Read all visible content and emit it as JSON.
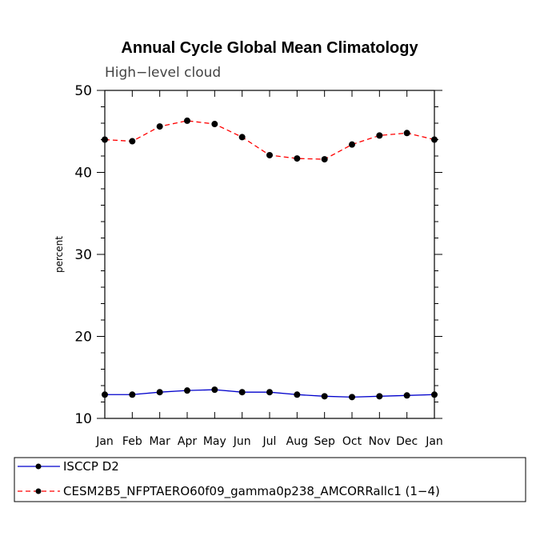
{
  "chart_data": {
    "type": "line",
    "title": "Annual Cycle Global Mean Climatology",
    "subtitle": "High−level cloud",
    "xlabel": "",
    "ylabel": "percent",
    "categories": [
      "Jan",
      "Feb",
      "Mar",
      "Apr",
      "May",
      "Jun",
      "Jul",
      "Aug",
      "Sep",
      "Oct",
      "Nov",
      "Dec",
      "Jan"
    ],
    "ylim": [
      10,
      50
    ],
    "yticks": [
      10,
      20,
      30,
      40,
      50
    ],
    "grid": false,
    "legend_position": "bottom",
    "series": [
      {
        "name": "ISCCP D2",
        "color": "#0000cc",
        "dash": "solid",
        "values": [
          12.9,
          12.9,
          13.2,
          13.4,
          13.5,
          13.2,
          13.2,
          12.9,
          12.7,
          12.6,
          12.7,
          12.8,
          12.9
        ]
      },
      {
        "name": "CESM2B5_NFPTAERO60f09_gamma0p238_AMCORRallc1 (1−4)",
        "color": "#ff0000",
        "dash": "dashed",
        "values": [
          44.0,
          43.8,
          45.6,
          46.3,
          45.9,
          44.3,
          42.1,
          41.7,
          41.6,
          43.4,
          44.5,
          44.8,
          44.0
        ]
      }
    ]
  }
}
